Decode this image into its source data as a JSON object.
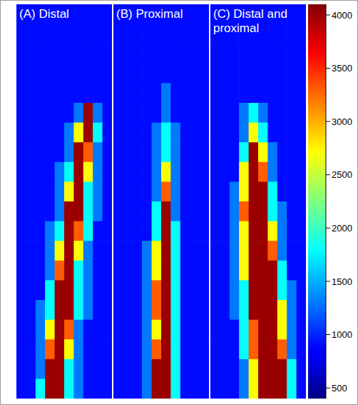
{
  "chart_data": [
    {
      "type": "heatmap",
      "title": "(A) Distal",
      "tick_labels": false,
      "cells": [
        [
          900,
          900,
          900,
          900,
          900,
          900,
          900,
          900,
          900,
          900
        ],
        [
          900,
          900,
          900,
          900,
          900,
          900,
          900,
          900,
          900,
          900
        ],
        [
          900,
          900,
          900,
          900,
          900,
          900,
          900,
          900,
          900,
          900
        ],
        [
          900,
          900,
          900,
          900,
          900,
          900,
          900,
          900,
          900,
          900
        ],
        [
          900,
          900,
          900,
          900,
          900,
          900,
          900,
          900,
          900,
          900
        ],
        [
          900,
          900,
          900,
          900,
          900,
          900,
          1300,
          4000,
          1300,
          900
        ],
        [
          900,
          900,
          900,
          900,
          900,
          1300,
          2700,
          4000,
          1800,
          900
        ],
        [
          900,
          900,
          900,
          900,
          900,
          1300,
          4000,
          3300,
          1300,
          900
        ],
        [
          900,
          900,
          900,
          900,
          1300,
          1800,
          4000,
          2700,
          1300,
          900
        ],
        [
          900,
          900,
          900,
          900,
          1300,
          2700,
          4000,
          1800,
          1300,
          900
        ],
        [
          900,
          900,
          900,
          900,
          1300,
          4000,
          4000,
          1800,
          1300,
          900
        ],
        [
          900,
          900,
          900,
          1300,
          1800,
          4000,
          3300,
          1800,
          900,
          900
        ],
        [
          900,
          900,
          900,
          1300,
          2700,
          4000,
          2700,
          1300,
          900,
          900
        ],
        [
          900,
          900,
          900,
          1300,
          3300,
          4000,
          1800,
          1300,
          900,
          900
        ],
        [
          900,
          900,
          900,
          1800,
          4000,
          4000,
          1800,
          1300,
          900,
          900
        ],
        [
          900,
          900,
          1300,
          1800,
          4000,
          4000,
          1800,
          1300,
          900,
          900
        ],
        [
          900,
          900,
          1300,
          2700,
          4000,
          3300,
          1300,
          900,
          900,
          900
        ],
        [
          900,
          900,
          1300,
          3300,
          4000,
          2700,
          1300,
          900,
          900,
          900
        ],
        [
          900,
          900,
          1300,
          4000,
          4000,
          1800,
          1300,
          900,
          900,
          900
        ],
        [
          900,
          900,
          1800,
          4000,
          4000,
          1800,
          1300,
          900,
          900,
          900
        ]
      ]
    },
    {
      "type": "heatmap",
      "title": "(B) Proximal",
      "tick_labels": false,
      "cells": [
        [
          900,
          900,
          900,
          900,
          900,
          900,
          900,
          900,
          900,
          900
        ],
        [
          900,
          900,
          900,
          900,
          900,
          900,
          900,
          900,
          900,
          900
        ],
        [
          900,
          900,
          900,
          900,
          900,
          900,
          900,
          900,
          900,
          900
        ],
        [
          900,
          900,
          900,
          900,
          900,
          900,
          900,
          900,
          900,
          900
        ],
        [
          900,
          900,
          900,
          900,
          900,
          1300,
          900,
          900,
          900,
          900
        ],
        [
          900,
          900,
          900,
          900,
          900,
          1300,
          900,
          900,
          900,
          900
        ],
        [
          900,
          900,
          900,
          900,
          1300,
          1800,
          1300,
          900,
          900,
          900
        ],
        [
          900,
          900,
          900,
          900,
          1300,
          1800,
          1300,
          900,
          900,
          900
        ],
        [
          900,
          900,
          900,
          900,
          1300,
          2700,
          1300,
          900,
          900,
          900
        ],
        [
          900,
          900,
          900,
          900,
          1300,
          3300,
          1300,
          900,
          900,
          900
        ],
        [
          900,
          900,
          900,
          900,
          1800,
          4000,
          1300,
          900,
          900,
          900
        ],
        [
          900,
          900,
          900,
          900,
          1800,
          4000,
          1800,
          900,
          900,
          900
        ],
        [
          900,
          900,
          900,
          1300,
          2700,
          4000,
          1800,
          900,
          900,
          900
        ],
        [
          900,
          900,
          900,
          1300,
          2700,
          4000,
          1800,
          900,
          900,
          900
        ],
        [
          900,
          900,
          900,
          1300,
          3300,
          4000,
          1800,
          900,
          900,
          900
        ],
        [
          900,
          900,
          900,
          1300,
          3300,
          4000,
          1800,
          900,
          900,
          900
        ],
        [
          900,
          900,
          900,
          1300,
          2700,
          4000,
          1800,
          900,
          900,
          900
        ],
        [
          900,
          900,
          900,
          1300,
          3300,
          4000,
          1800,
          900,
          900,
          900
        ],
        [
          900,
          900,
          900,
          1300,
          4000,
          4000,
          1800,
          900,
          900,
          900
        ],
        [
          900,
          900,
          900,
          1300,
          4000,
          4000,
          1800,
          900,
          900,
          900
        ]
      ]
    },
    {
      "type": "heatmap",
      "title": "(C) Distal and proximal",
      "tick_labels": false,
      "colorbar": {
        "range": [
          400,
          4100
        ],
        "ticks": [
          500,
          1000,
          1500,
          2000,
          2500,
          3000,
          3500,
          4000
        ]
      },
      "cells": [
        [
          900,
          900,
          900,
          900,
          900,
          900,
          900,
          900,
          900,
          900
        ],
        [
          900,
          900,
          900,
          900,
          900,
          900,
          900,
          900,
          900,
          900
        ],
        [
          900,
          900,
          900,
          900,
          900,
          900,
          900,
          900,
          900,
          900
        ],
        [
          900,
          900,
          900,
          900,
          900,
          900,
          900,
          900,
          900,
          900
        ],
        [
          900,
          900,
          900,
          900,
          900,
          900,
          900,
          900,
          900,
          900
        ],
        [
          900,
          900,
          900,
          1300,
          1800,
          1300,
          900,
          900,
          900,
          900
        ],
        [
          900,
          900,
          900,
          1300,
          2700,
          1800,
          900,
          900,
          900,
          900
        ],
        [
          900,
          900,
          900,
          1800,
          4000,
          2700,
          1300,
          900,
          900,
          900
        ],
        [
          900,
          900,
          900,
          2700,
          4000,
          3300,
          1300,
          900,
          900,
          900
        ],
        [
          900,
          900,
          1300,
          2700,
          4000,
          4000,
          1800,
          900,
          900,
          900
        ],
        [
          900,
          900,
          1300,
          3300,
          4000,
          4000,
          1800,
          1300,
          900,
          900
        ],
        [
          900,
          900,
          1300,
          2700,
          4000,
          4000,
          2700,
          1300,
          900,
          900
        ],
        [
          900,
          900,
          1300,
          2700,
          4000,
          4000,
          3300,
          1300,
          900,
          900
        ],
        [
          900,
          900,
          1300,
          2700,
          4000,
          4000,
          4000,
          1800,
          900,
          900
        ],
        [
          900,
          900,
          1300,
          1800,
          4000,
          4000,
          4000,
          1800,
          1300,
          900
        ],
        [
          900,
          900,
          1300,
          1800,
          4000,
          4000,
          4000,
          2700,
          1300,
          900
        ],
        [
          900,
          900,
          900,
          1800,
          3300,
          4000,
          4000,
          2700,
          1300,
          900
        ],
        [
          900,
          900,
          900,
          1800,
          3300,
          4000,
          4000,
          3300,
          1300,
          900
        ],
        [
          900,
          900,
          900,
          1300,
          2700,
          4000,
          4000,
          4000,
          1800,
          900
        ],
        [
          900,
          900,
          900,
          1300,
          2700,
          4000,
          4000,
          4000,
          1800,
          900
        ]
      ]
    }
  ]
}
